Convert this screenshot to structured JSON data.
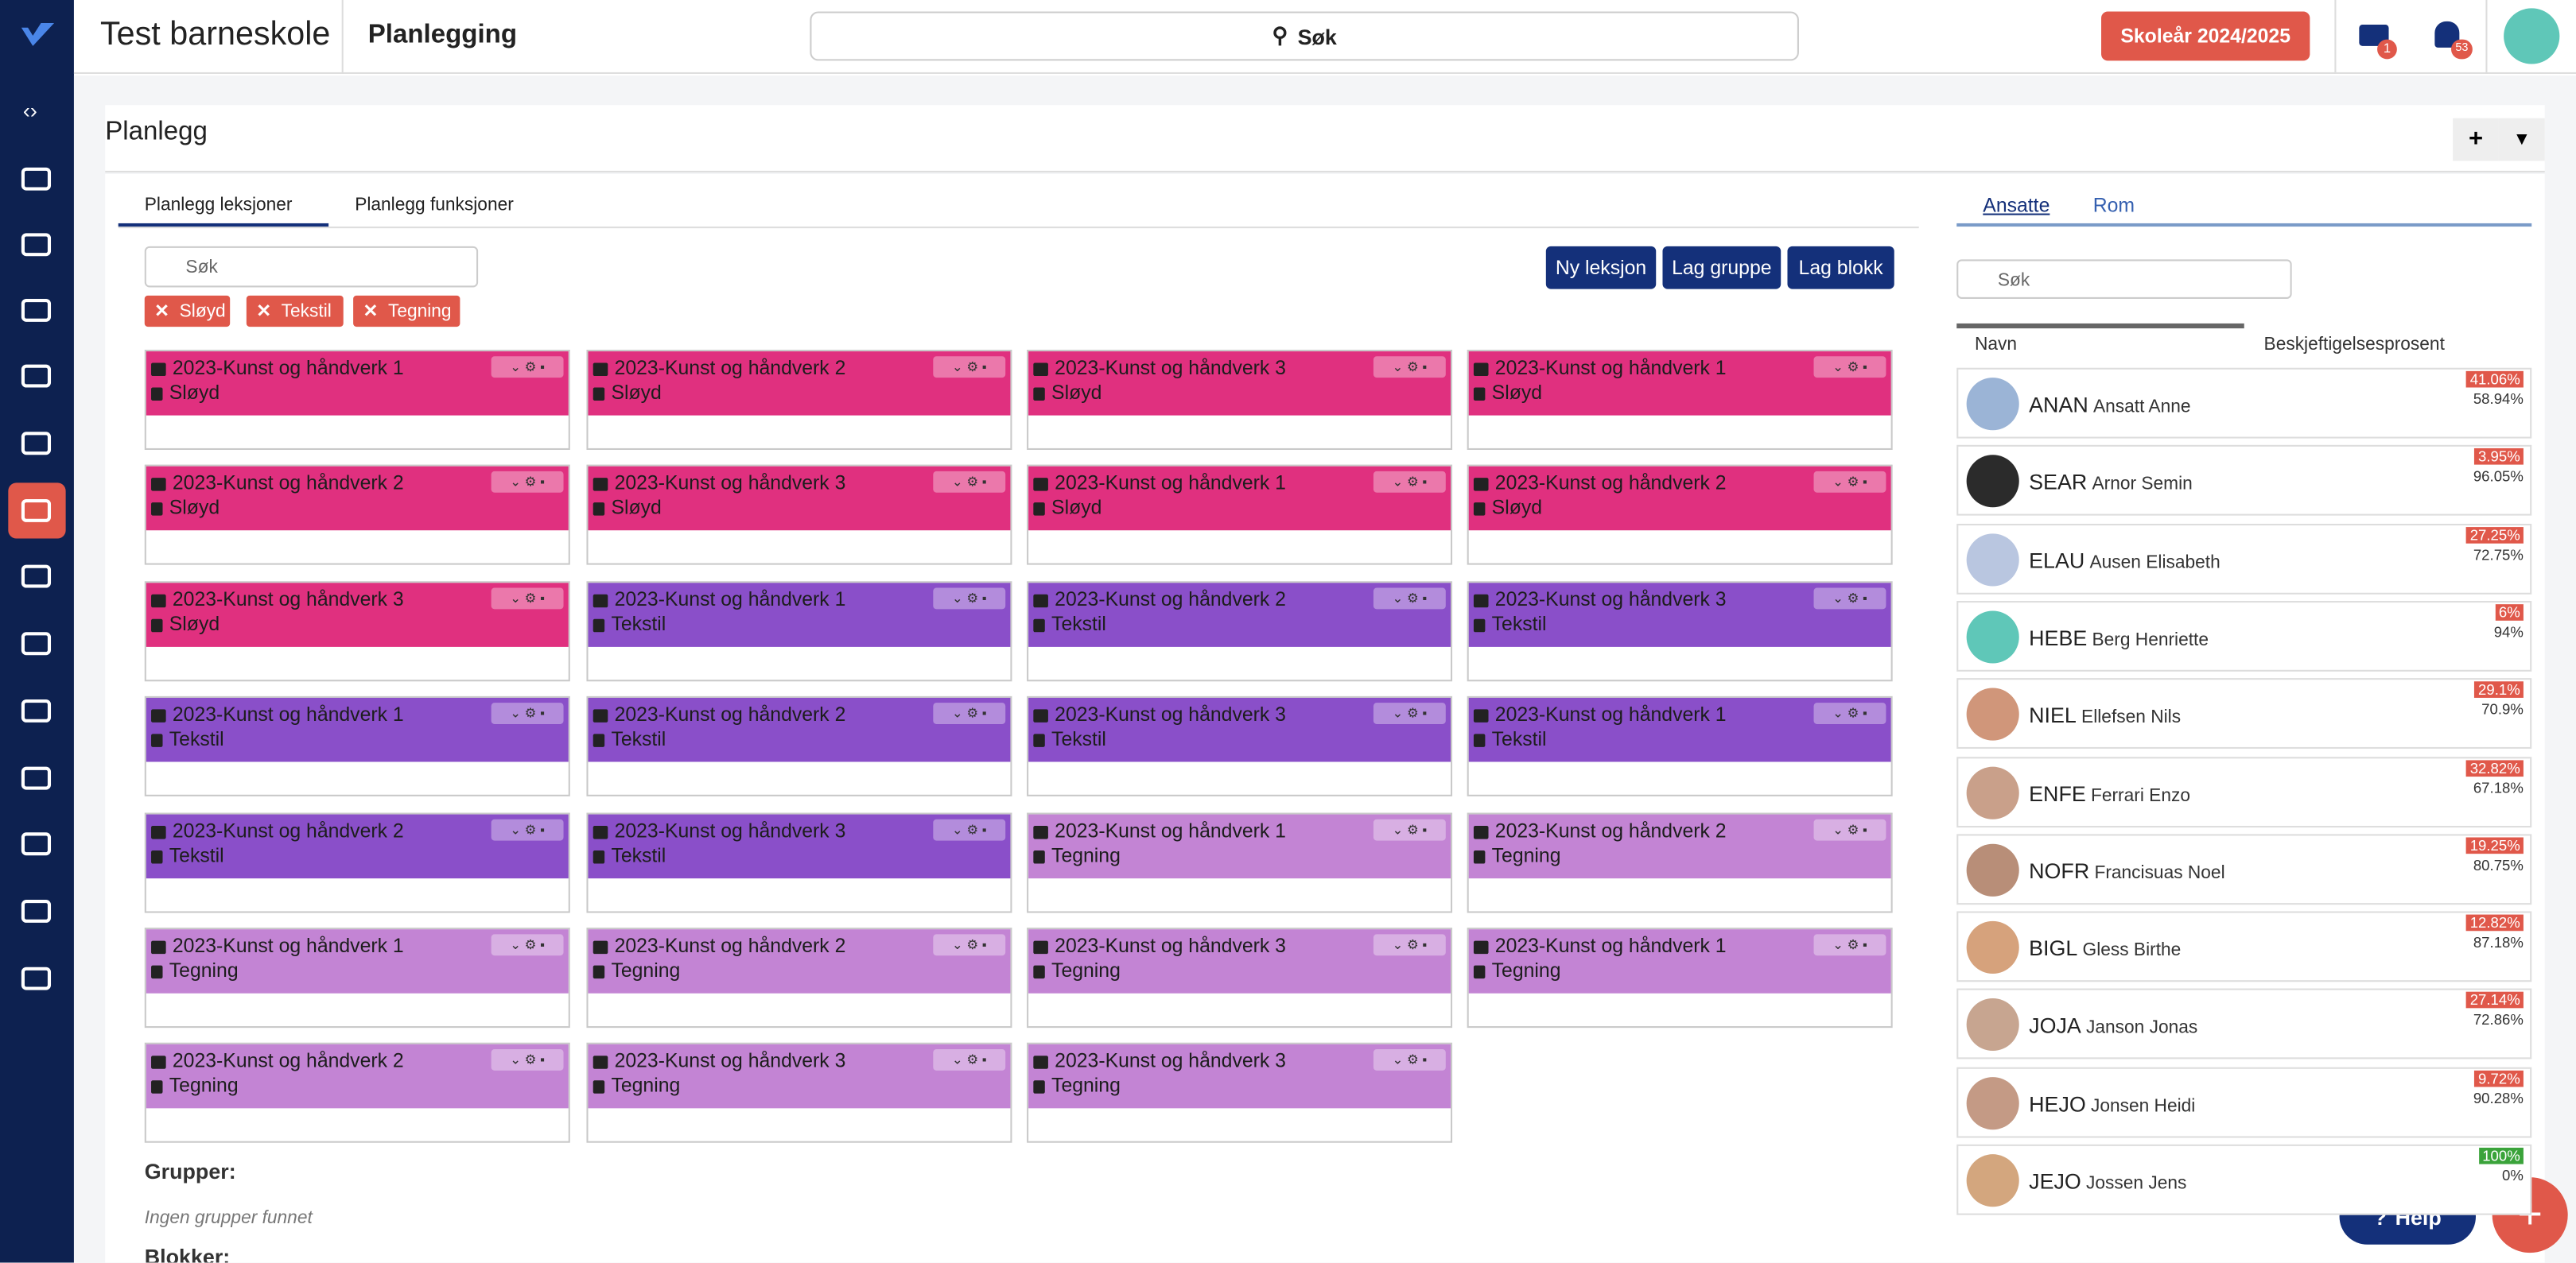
{
  "header": {
    "school": "Test barneskole",
    "section": "Planlegging",
    "search": "Søk",
    "year_button": "Skoleår 2024/2025",
    "mail_badge": "1",
    "bell_badge": "53"
  },
  "page": {
    "title": "Planlegg",
    "tabs": [
      "Planlegg leksjoner",
      "Planlegg funksjoner"
    ],
    "search_placeholder": "Søk",
    "filters": [
      "Sløyd",
      "Tekstil",
      "Tegning"
    ],
    "buttons": [
      "Ny leksjon",
      "Lag gruppe",
      "Lag blokk"
    ],
    "cards": [
      {
        "title": "2023-Kunst og håndverk 1",
        "subject": "Sløyd",
        "color": "#e0307f"
      },
      {
        "title": "2023-Kunst og håndverk 2",
        "subject": "Sløyd",
        "color": "#e0307f"
      },
      {
        "title": "2023-Kunst og håndverk 3",
        "subject": "Sløyd",
        "color": "#e0307f"
      },
      {
        "title": "2023-Kunst og håndverk 1",
        "subject": "Sløyd",
        "color": "#e0307f"
      },
      {
        "title": "2023-Kunst og håndverk 2",
        "subject": "Sløyd",
        "color": "#e0307f"
      },
      {
        "title": "2023-Kunst og håndverk 3",
        "subject": "Sløyd",
        "color": "#e0307f"
      },
      {
        "title": "2023-Kunst og håndverk 1",
        "subject": "Sløyd",
        "color": "#e0307f"
      },
      {
        "title": "2023-Kunst og håndverk 2",
        "subject": "Sløyd",
        "color": "#e0307f"
      },
      {
        "title": "2023-Kunst og håndverk 3",
        "subject": "Sløyd",
        "color": "#e0307f"
      },
      {
        "title": "2023-Kunst og håndverk 1",
        "subject": "Tekstil",
        "color": "#8a4fc9"
      },
      {
        "title": "2023-Kunst og håndverk 2",
        "subject": "Tekstil",
        "color": "#8a4fc9"
      },
      {
        "title": "2023-Kunst og håndverk 3",
        "subject": "Tekstil",
        "color": "#8a4fc9"
      },
      {
        "title": "2023-Kunst og håndverk 1",
        "subject": "Tekstil",
        "color": "#8a4fc9"
      },
      {
        "title": "2023-Kunst og håndverk 2",
        "subject": "Tekstil",
        "color": "#8a4fc9"
      },
      {
        "title": "2023-Kunst og håndverk 3",
        "subject": "Tekstil",
        "color": "#8a4fc9"
      },
      {
        "title": "2023-Kunst og håndverk 1",
        "subject": "Tekstil",
        "color": "#8a4fc9"
      },
      {
        "title": "2023-Kunst og håndverk 2",
        "subject": "Tekstil",
        "color": "#8a4fc9"
      },
      {
        "title": "2023-Kunst og håndverk 3",
        "subject": "Tekstil",
        "color": "#8a4fc9"
      },
      {
        "title": "2023-Kunst og håndverk 1",
        "subject": "Tegning",
        "color": "#c384d4"
      },
      {
        "title": "2023-Kunst og håndverk 2",
        "subject": "Tegning",
        "color": "#c384d4"
      },
      {
        "title": "2023-Kunst og håndverk 1",
        "subject": "Tegning",
        "color": "#c384d4"
      },
      {
        "title": "2023-Kunst og håndverk 2",
        "subject": "Tegning",
        "color": "#c384d4"
      },
      {
        "title": "2023-Kunst og håndverk 3",
        "subject": "Tegning",
        "color": "#c384d4"
      },
      {
        "title": "2023-Kunst og håndverk 1",
        "subject": "Tegning",
        "color": "#c384d4"
      },
      {
        "title": "2023-Kunst og håndverk 2",
        "subject": "Tegning",
        "color": "#c384d4"
      },
      {
        "title": "2023-Kunst og håndverk 3",
        "subject": "Tegning",
        "color": "#c384d4"
      },
      {
        "title": "2023-Kunst og håndverk 3",
        "subject": "Tegning",
        "color": "#c384d4"
      }
    ],
    "groups_heading": "Grupper:",
    "groups_empty": "Ingen grupper funnet",
    "blocks_heading": "Blokker:"
  },
  "staff": {
    "tabs": [
      "Ansatte",
      "Rom"
    ],
    "search_placeholder": "Søk",
    "columns": [
      "Navn",
      "Beskjeftigelsesprosent"
    ],
    "rows": [
      {
        "code": "ANAN",
        "name": "Ansatt Anne",
        "free": "41.06%",
        "used": "58.94%",
        "badge": "#e0584a"
      },
      {
        "code": "SEAR",
        "name": "Arnor Semin",
        "free": "3.95%",
        "used": "96.05%",
        "badge": "#e0584a"
      },
      {
        "code": "ELAU",
        "name": "Ausen Elisabeth",
        "free": "27.25%",
        "used": "72.75%",
        "badge": "#e0584a"
      },
      {
        "code": "HEBE",
        "name": "Berg Henriette",
        "free": "6%",
        "used": "94%",
        "badge": "#e0584a"
      },
      {
        "code": "NIEL",
        "name": "Ellefsen Nils",
        "free": "29.1%",
        "used": "70.9%",
        "badge": "#e0584a"
      },
      {
        "code": "ENFE",
        "name": "Ferrari Enzo",
        "free": "32.82%",
        "used": "67.18%",
        "badge": "#e0584a"
      },
      {
        "code": "NOFR",
        "name": "Francisuas Noel",
        "free": "19.25%",
        "used": "80.75%",
        "badge": "#e0584a"
      },
      {
        "code": "BIGL",
        "name": "Gless Birthe",
        "free": "12.82%",
        "used": "87.18%",
        "badge": "#e0584a"
      },
      {
        "code": "JOJA",
        "name": "Janson Jonas",
        "free": "27.14%",
        "used": "72.86%",
        "badge": "#e0584a"
      },
      {
        "code": "HEJO",
        "name": "Jonsen Heidi",
        "free": "9.72%",
        "used": "90.28%",
        "badge": "#e0584a"
      },
      {
        "code": "JEJO",
        "name": "Jossen Jens",
        "free": "100%",
        "used": "0%",
        "badge": "#3aa33a"
      }
    ]
  },
  "help": "Help"
}
